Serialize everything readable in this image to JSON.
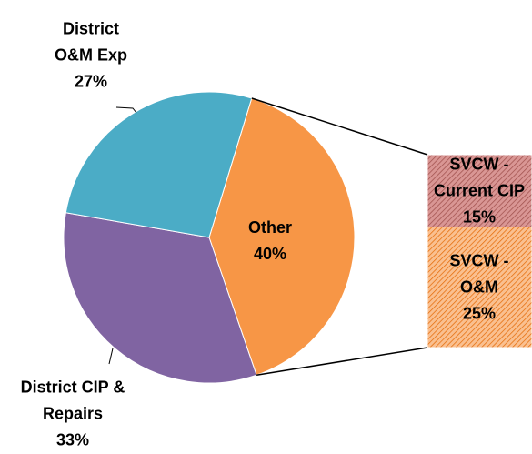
{
  "chart_data": {
    "type": "pie-of-bar",
    "categories": [
      "Other",
      "District CIP & Repairs",
      "District O&M Exp"
    ],
    "values": [
      40,
      33,
      27
    ],
    "value_labels": [
      "40%",
      "33%",
      "27%"
    ],
    "colors": [
      "#f79646",
      "#8064a2",
      "#4bacc6"
    ],
    "bar": {
      "categories": [
        "SVCW - Current CIP",
        "SVCW - O&M"
      ],
      "values": [
        15,
        25
      ],
      "value_labels": [
        "15%",
        "25%"
      ],
      "colors": [
        "#d99694",
        "#fac090"
      ]
    }
  }
}
